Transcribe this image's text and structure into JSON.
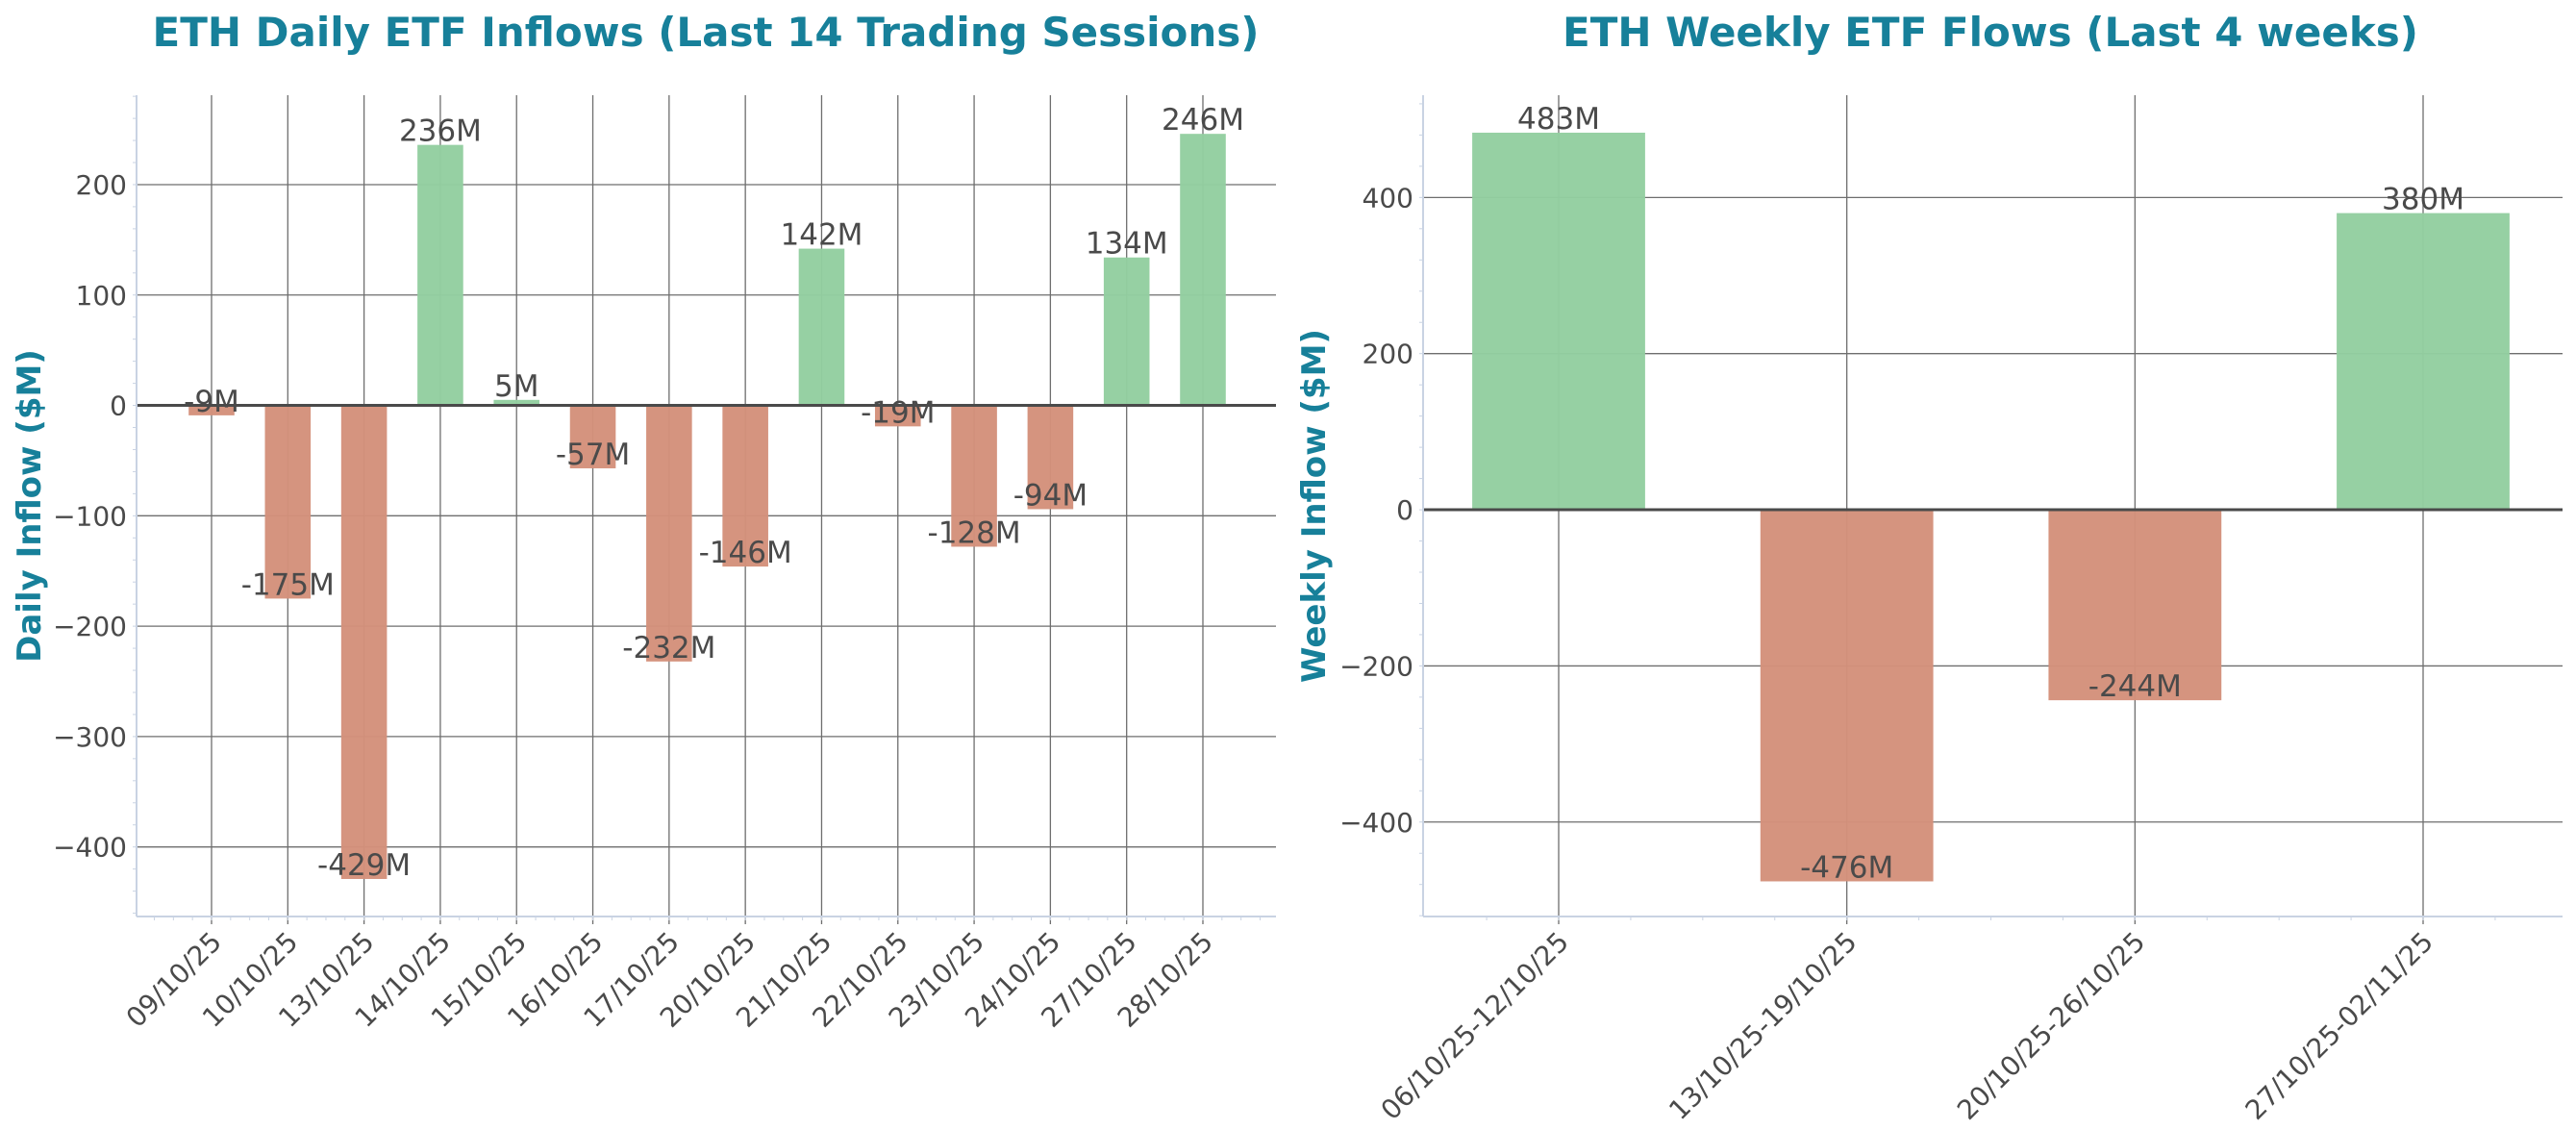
{
  "colors": {
    "positive": "#93cea0",
    "negative": "#d4917b",
    "title": "#17809a",
    "grid": "#6e6e6e",
    "zero_line": "#4a4a4a",
    "spine": "#c9d3e3"
  },
  "chart_data": [
    {
      "type": "bar",
      "title": "ETH Daily ETF Inflows (Last 14 Trading Sessions)",
      "xlabel": "",
      "ylabel": "Daily Inflow ($M)",
      "categories": [
        "09/10/25",
        "10/10/25",
        "13/10/25",
        "14/10/25",
        "15/10/25",
        "16/10/25",
        "17/10/25",
        "20/10/25",
        "21/10/25",
        "22/10/25",
        "23/10/25",
        "24/10/25",
        "27/10/25",
        "28/10/25"
      ],
      "values": [
        -9,
        -175,
        -429,
        236,
        5,
        -57,
        -232,
        -146,
        142,
        -19,
        -128,
        -94,
        134,
        246
      ],
      "labels": [
        "-9M",
        "-175M",
        "-429M",
        "236M",
        "5M",
        "-57M",
        "-232M",
        "-146M",
        "142M",
        "-19M",
        "-128M",
        "-94M",
        "134M",
        "246M"
      ],
      "yticks": [
        -400,
        -300,
        -200,
        -100,
        0,
        100,
        200
      ],
      "ytick_labels": [
        "−400",
        "−300",
        "−200",
        "−100",
        "0",
        "100",
        "200"
      ],
      "ylim": [
        -463,
        281
      ],
      "grid": true
    },
    {
      "type": "bar",
      "title": "ETH Weekly ETF Flows (Last 4 weeks)",
      "xlabel": "",
      "ylabel": "Weekly Inflow ($M)",
      "categories": [
        "06/10/25-12/10/25",
        "13/10/25-19/10/25",
        "20/10/25-26/10/25",
        "27/10/25-02/11/25"
      ],
      "values": [
        483,
        -476,
        -244,
        380
      ],
      "labels": [
        "483M",
        "-476M",
        "-244M",
        "380M"
      ],
      "yticks": [
        -400,
        -200,
        0,
        200,
        400
      ],
      "ytick_labels": [
        "−400",
        "−200",
        "0",
        "200",
        "400"
      ],
      "ylim": [
        -521,
        531
      ],
      "grid": true
    }
  ]
}
